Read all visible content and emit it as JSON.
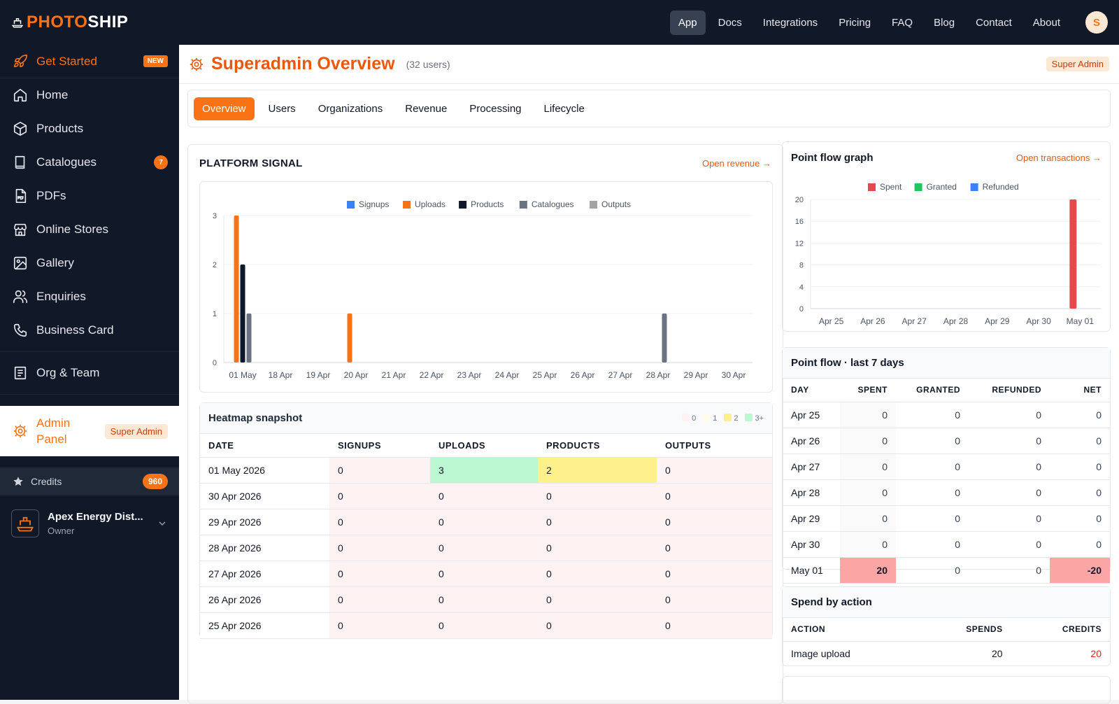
{
  "brand": {
    "part1": "PHOTO",
    "part2": "SHIP"
  },
  "topnav": [
    "App",
    "Docs",
    "Integrations",
    "Pricing",
    "FAQ",
    "Blog",
    "Contact",
    "About"
  ],
  "user": {
    "initial": "S"
  },
  "sidebar": {
    "get_started": {
      "label": "Get Started",
      "badge": "NEW"
    },
    "items": [
      {
        "label": "Home",
        "icon": "home-icon"
      },
      {
        "label": "Products",
        "icon": "box-icon"
      },
      {
        "label": "Catalogues",
        "icon": "book-icon",
        "badge": "7"
      },
      {
        "label": "PDFs",
        "icon": "pdf-icon"
      },
      {
        "label": "Online Stores",
        "icon": "store-icon"
      },
      {
        "label": "Gallery",
        "icon": "image-icon"
      },
      {
        "label": "Enquiries",
        "icon": "users-icon"
      },
      {
        "label": "Business Card",
        "icon": "phone-icon"
      }
    ],
    "org_team": "Org & Team",
    "admin": {
      "line1": "Admin",
      "line2": "Panel",
      "badge": "Super Admin"
    },
    "credits": {
      "label": "Credits",
      "value": "960"
    },
    "org": {
      "name": "Apex Energy Dist...",
      "role": "Owner"
    }
  },
  "header": {
    "title": "Superadmin Overview",
    "sub": "(32 users)",
    "badge": "Super Admin"
  },
  "tabs": [
    "Overview",
    "Users",
    "Organizations",
    "Revenue",
    "Processing",
    "Lifecycle"
  ],
  "platform": {
    "title": "PLATFORM SIGNAL",
    "link": "Open revenue →"
  },
  "heatmap": {
    "title": "Heatmap snapshot",
    "legend": [
      "0",
      "1",
      "2",
      "3+"
    ],
    "columns": [
      "DATE",
      "SIGNUPS",
      "UPLOADS",
      "PRODUCTS",
      "OUTPUTS"
    ],
    "rows": [
      [
        "01 May 2026",
        "0",
        "3",
        "2",
        "0"
      ],
      [
        "30 Apr 2026",
        "0",
        "0",
        "0",
        "0"
      ],
      [
        "29 Apr 2026",
        "0",
        "0",
        "0",
        "0"
      ],
      [
        "28 Apr 2026",
        "0",
        "0",
        "0",
        "0"
      ],
      [
        "27 Apr 2026",
        "0",
        "0",
        "0",
        "0"
      ],
      [
        "26 Apr 2026",
        "0",
        "0",
        "0",
        "0"
      ],
      [
        "25 Apr 2026",
        "0",
        "0",
        "0",
        "0"
      ]
    ]
  },
  "pointflow_graph": {
    "title": "Point flow graph",
    "link": "Open transactions →"
  },
  "pointflow_table": {
    "title": "Point flow · last 7 days",
    "columns": [
      "DAY",
      "SPENT",
      "GRANTED",
      "REFUNDED",
      "NET"
    ],
    "rows": [
      [
        "Apr 25",
        "0",
        "0",
        "0",
        "0"
      ],
      [
        "Apr 26",
        "0",
        "0",
        "0",
        "0"
      ],
      [
        "Apr 27",
        "0",
        "0",
        "0",
        "0"
      ],
      [
        "Apr 28",
        "0",
        "0",
        "0",
        "0"
      ],
      [
        "Apr 29",
        "0",
        "0",
        "0",
        "0"
      ],
      [
        "Apr 30",
        "0",
        "0",
        "0",
        "0"
      ],
      [
        "May 01",
        "20",
        "0",
        "0",
        "-20"
      ]
    ]
  },
  "spend_by_action": {
    "title": "Spend by action",
    "columns": [
      "ACTION",
      "SPENDS",
      "CREDITS"
    ],
    "rows": [
      [
        "Image upload",
        "20",
        "20"
      ]
    ]
  },
  "chart_data": [
    {
      "type": "bar",
      "categories": [
        "01 May",
        "18 Apr",
        "19 Apr",
        "20 Apr",
        "21 Apr",
        "22 Apr",
        "23 Apr",
        "24 Apr",
        "25 Apr",
        "26 Apr",
        "27 Apr",
        "28 Apr",
        "29 Apr",
        "30 Apr"
      ],
      "series": [
        {
          "name": "Signups",
          "color": "#3b82f6",
          "values": [
            0,
            0,
            0,
            0,
            0,
            0,
            0,
            0,
            0,
            0,
            0,
            0,
            0,
            0
          ]
        },
        {
          "name": "Uploads",
          "color": "#f97316",
          "values": [
            3,
            0,
            0,
            1,
            0,
            0,
            0,
            0,
            0,
            0,
            0,
            0,
            0,
            0
          ]
        },
        {
          "name": "Products",
          "color": "#111827",
          "values": [
            2,
            0,
            0,
            0,
            0,
            0,
            0,
            0,
            0,
            0,
            0,
            0,
            0,
            0
          ]
        },
        {
          "name": "Catalogues",
          "color": "#6b7280",
          "values": [
            1,
            0,
            0,
            0,
            0,
            0,
            0,
            0,
            0,
            0,
            0,
            1,
            0,
            0
          ]
        },
        {
          "name": "Outputs",
          "color": "#a3a3a3",
          "values": [
            0,
            0,
            0,
            0,
            0,
            0,
            0,
            0,
            0,
            0,
            0,
            0,
            0,
            0
          ]
        }
      ],
      "yticks": [
        "0",
        "1",
        "2",
        "3"
      ],
      "ylim": [
        0,
        3
      ],
      "legend": "top",
      "grid": true
    },
    {
      "type": "bar",
      "categories": [
        "Apr 25",
        "Apr 26",
        "Apr 27",
        "Apr 28",
        "Apr 29",
        "Apr 30",
        "May 01"
      ],
      "series": [
        {
          "name": "Spent",
          "color": "#e5484d",
          "values": [
            0,
            0,
            0,
            0,
            0,
            0,
            20
          ]
        },
        {
          "name": "Granted",
          "color": "#22c55e",
          "values": [
            0,
            0,
            0,
            0,
            0,
            0,
            0
          ]
        },
        {
          "name": "Refunded",
          "color": "#3b82f6",
          "values": [
            0,
            0,
            0,
            0,
            0,
            0,
            0
          ]
        }
      ],
      "yticks": [
        "0",
        "4",
        "8",
        "12",
        "16",
        "20"
      ],
      "ylim": [
        0,
        20
      ],
      "legend": "top",
      "grid": true
    }
  ]
}
